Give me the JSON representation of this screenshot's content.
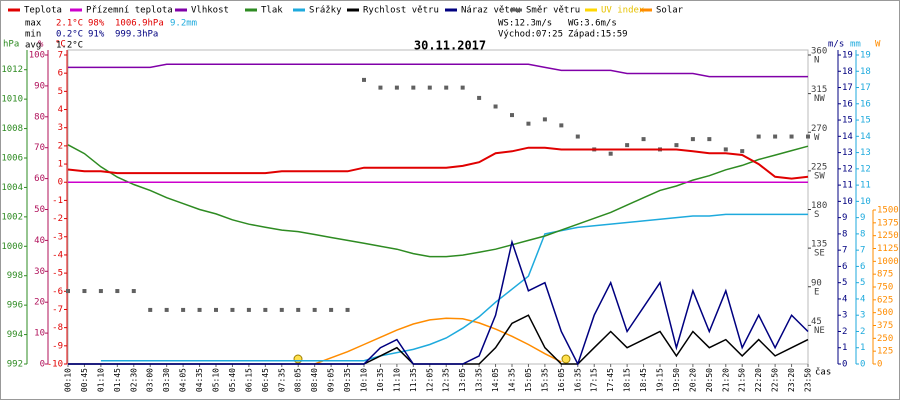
{
  "chart_data": {
    "type": "line",
    "title": "30.11.2017",
    "x_label": "čas",
    "categories": [
      "00:10",
      "00:45",
      "01:10",
      "01:45",
      "02:30",
      "03:00",
      "03:30",
      "04:05",
      "04:35",
      "05:10",
      "05:40",
      "06:15",
      "06:45",
      "07:35",
      "08:05",
      "08:40",
      "09:05",
      "09:35",
      "10:10",
      "10:35",
      "11:10",
      "11:35",
      "12:05",
      "12:35",
      "13:05",
      "13:35",
      "14:05",
      "14:35",
      "15:05",
      "15:35",
      "16:05",
      "16:35",
      "17:15",
      "17:45",
      "18:15",
      "18:45",
      "19:15",
      "19:50",
      "20:20",
      "20:50",
      "21:20",
      "21:50",
      "22:20",
      "22:50",
      "23:20",
      "23:50"
    ],
    "axes": {
      "hpa": {
        "label": "hPa",
        "color": "#2e8b22",
        "lim": [
          992,
          1013
        ],
        "ticks": [
          992,
          994,
          996,
          998,
          1000,
          1002,
          1004,
          1006,
          1008,
          1010,
          1012
        ]
      },
      "pct": {
        "label": "%",
        "color": "#b0105a",
        "lim": [
          0,
          100
        ],
        "ticks": [
          0,
          10,
          20,
          30,
          40,
          50,
          60,
          70,
          80,
          90,
          100
        ]
      },
      "temp": {
        "label": "°C",
        "color": "#e00000",
        "lim": [
          -10,
          7
        ],
        "ticks": [
          -10,
          -9,
          -8,
          -7,
          -6,
          -5,
          -4,
          -3,
          -2,
          -1,
          0,
          1,
          2,
          3,
          4,
          5,
          6,
          7
        ]
      },
      "dir": {
        "color": "#404040",
        "lim": [
          0,
          360
        ],
        "ticks": [
          45,
          90,
          135,
          180,
          225,
          270,
          315,
          360
        ],
        "compass": [
          "NE",
          "E",
          "SE",
          "S",
          "SW",
          "W",
          "NW",
          "N"
        ]
      },
      "ms": {
        "label": "m/s",
        "color": "#000080",
        "lim": [
          0,
          19
        ],
        "ticks": [
          0,
          1,
          2,
          3,
          4,
          5,
          6,
          7,
          8,
          9,
          10,
          11,
          12,
          13,
          14,
          15,
          16,
          17,
          18,
          19
        ]
      },
      "mm": {
        "label": "mm",
        "color": "#1eaadd",
        "lim": [
          0,
          19
        ],
        "ticks": [
          0,
          1,
          2,
          3,
          4,
          5,
          6,
          7,
          8,
          9,
          10,
          11,
          12,
          13,
          14,
          15,
          16,
          17,
          18,
          19
        ]
      },
      "w": {
        "label": "W",
        "color": "#ff8c00",
        "lim": [
          0,
          1500
        ],
        "ticks": [
          0,
          125,
          250,
          375,
          500,
          625,
          750,
          875,
          1000,
          1125,
          1250,
          1375,
          1500
        ]
      }
    },
    "series": [
      {
        "name": "Teplota",
        "color": "#e00000",
        "axis": "temp",
        "values": [
          0.7,
          0.6,
          0.6,
          0.5,
          0.5,
          0.5,
          0.5,
          0.5,
          0.5,
          0.5,
          0.5,
          0.5,
          0.5,
          0.6,
          0.6,
          0.6,
          0.6,
          0.6,
          0.8,
          0.8,
          0.8,
          0.8,
          0.8,
          0.8,
          0.9,
          1.1,
          1.6,
          1.7,
          1.9,
          1.9,
          1.8,
          1.8,
          1.8,
          1.8,
          1.8,
          1.8,
          1.8,
          1.8,
          1.7,
          1.6,
          1.6,
          1.5,
          1.0,
          0.3,
          0.2,
          0.3
        ]
      },
      {
        "name": "Přízemní teplota",
        "color": "#cc00cc",
        "axis": "temp",
        "values": [
          0,
          0,
          0,
          0,
          0,
          0,
          0,
          0,
          0,
          0,
          0,
          0,
          0,
          0,
          0,
          0,
          0,
          0,
          0,
          0,
          0,
          0,
          0,
          0,
          0,
          0,
          0,
          0,
          0,
          0,
          0,
          0,
          0,
          0,
          0,
          0,
          0,
          0,
          0,
          0,
          0,
          0,
          0,
          0,
          0,
          0
        ]
      },
      {
        "name": "Vlhkost",
        "color": "#8000a8",
        "axis": "pct",
        "values": [
          96,
          96,
          96,
          96,
          96,
          96,
          97,
          97,
          97,
          97,
          97,
          97,
          97,
          97,
          97,
          97,
          97,
          97,
          97,
          97,
          97,
          97,
          97,
          97,
          97,
          97,
          97,
          97,
          97,
          96,
          95,
          95,
          95,
          95,
          94,
          94,
          94,
          94,
          94,
          93,
          93,
          93,
          93,
          93,
          93,
          93
        ]
      },
      {
        "name": "Tlak",
        "color": "#2e8b22",
        "axis": "hpa",
        "values": [
          1006.9,
          1006.3,
          1005.4,
          1004.7,
          1004.2,
          1003.8,
          1003.3,
          1002.9,
          1002.5,
          1002.2,
          1001.8,
          1001.5,
          1001.3,
          1001.1,
          1001.0,
          1000.8,
          1000.6,
          1000.4,
          1000.2,
          1000.0,
          999.8,
          999.5,
          999.3,
          999.3,
          999.4,
          999.6,
          999.8,
          1000.1,
          1000.4,
          1000.7,
          1001.1,
          1001.5,
          1001.9,
          1002.3,
          1002.8,
          1003.3,
          1003.8,
          1004.1,
          1004.5,
          1004.8,
          1005.2,
          1005.5,
          1005.9,
          1006.2,
          1006.5,
          1006.8
        ]
      },
      {
        "name": "Srážky",
        "color": "#1eaadd",
        "axis": "mm",
        "values": [
          null,
          null,
          0.2,
          0.2,
          0.2,
          0.2,
          0.2,
          0.2,
          0.2,
          0.2,
          0.2,
          0.2,
          0.2,
          0.2,
          0.2,
          0.2,
          0.2,
          0.2,
          0.2,
          0.5,
          0.7,
          0.9,
          1.2,
          1.6,
          2.2,
          2.9,
          3.8,
          4.6,
          5.4,
          8.0,
          8.2,
          8.4,
          8.5,
          8.6,
          8.7,
          8.8,
          8.9,
          9.0,
          9.1,
          9.1,
          9.2,
          9.2,
          9.2,
          9.2,
          9.2,
          9.2
        ]
      },
      {
        "name": "Rychlost větru",
        "color": "#000000",
        "axis": "ms",
        "values": [
          0,
          0,
          0,
          0,
          0,
          0,
          0,
          0,
          0,
          0,
          0,
          0,
          0,
          0,
          0,
          0,
          0,
          0,
          0,
          0.5,
          1,
          0,
          0,
          0,
          0,
          0,
          1,
          2.5,
          3,
          1,
          0,
          0,
          1,
          2,
          1,
          1.5,
          2,
          0.5,
          2,
          1,
          1.5,
          0.5,
          1.5,
          0.5,
          1,
          1.5
        ]
      },
      {
        "name": "Náraz větru",
        "color": "#000080",
        "axis": "ms",
        "values": [
          0,
          0,
          0,
          0,
          0,
          0,
          0,
          0,
          0,
          0,
          0,
          0,
          0,
          0,
          0,
          0,
          0,
          0,
          0,
          1,
          1.5,
          0,
          0,
          0,
          0,
          0.5,
          3,
          7.5,
          4.5,
          5,
          2,
          0,
          3,
          5,
          2,
          3.5,
          5,
          1,
          4.5,
          2,
          4.5,
          1,
          3,
          1,
          3,
          2
        ]
      },
      {
        "name": "Směr větru",
        "color": "#606060",
        "axis": "dir",
        "style": "points",
        "values": [
          85,
          85,
          85,
          85,
          85,
          63,
          63,
          63,
          63,
          63,
          63,
          63,
          63,
          63,
          63,
          63,
          63,
          63,
          331,
          322,
          322,
          322,
          322,
          322,
          322,
          310,
          300,
          290,
          280,
          285,
          278,
          265,
          250,
          245,
          255,
          262,
          250,
          255,
          262,
          262,
          250,
          248,
          265,
          265,
          265,
          265
        ]
      },
      {
        "name": "UV index",
        "color": "#ffd700"
      },
      {
        "name": "Solar",
        "color": "#ff8c00",
        "axis": "w",
        "values": [
          null,
          null,
          null,
          null,
          null,
          null,
          null,
          null,
          null,
          null,
          null,
          null,
          null,
          null,
          null,
          0,
          60,
          120,
          190,
          260,
          330,
          390,
          430,
          445,
          440,
          400,
          340,
          270,
          190,
          100,
          20,
          null,
          null,
          null,
          null,
          null,
          null,
          null,
          null,
          null,
          null,
          null,
          null,
          null,
          null,
          null
        ]
      }
    ],
    "stats": {
      "rows": [
        {
          "label": "max",
          "temp": "2.1°C",
          "humidity": "98%",
          "pressure": "1006.9hPa",
          "rain": "9.2mm"
        },
        {
          "label": "min",
          "temp": "0.2°C",
          "humidity": "91%",
          "pressure": "999.3hPa"
        },
        {
          "label": "avg",
          "temp": "1.2°C"
        }
      ],
      "ws": "WS:12.3m/s",
      "wg": "WG:3.6m/s",
      "sunrise": "Východ:07:25",
      "sunset": "Západ:15:59"
    }
  }
}
